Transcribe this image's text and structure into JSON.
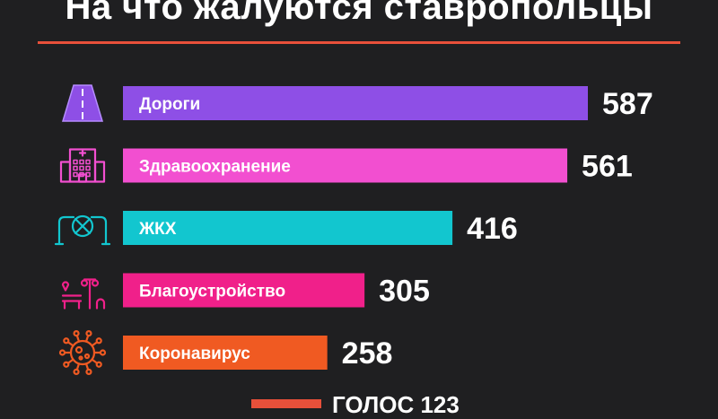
{
  "title": "На что жалуются ставропольцы",
  "footer": {
    "text": "ГОЛОС 123"
  },
  "colors": {
    "background": "#1f1f21",
    "accent_rule": "#e8503a"
  },
  "chart_data": {
    "type": "bar",
    "orientation": "horizontal",
    "categories": [
      "Дороги",
      "Здравоохранение",
      "ЖКХ",
      "Благоустройство",
      "Коронавирус"
    ],
    "values": [
      587,
      561,
      416,
      305,
      258
    ],
    "bar_colors": [
      "#8e4fe6",
      "#f24fd0",
      "#12c6cf",
      "#f0208a",
      "#f05a22"
    ],
    "icons": [
      "road-icon",
      "hospital-icon",
      "pipe-valve-icon",
      "park-bench-lamp-icon",
      "coronavirus-icon"
    ],
    "title": "На что жалуются ставропольцы",
    "xlabel": "",
    "ylabel": "",
    "grid": false,
    "legend": "none",
    "data_labels": true
  }
}
